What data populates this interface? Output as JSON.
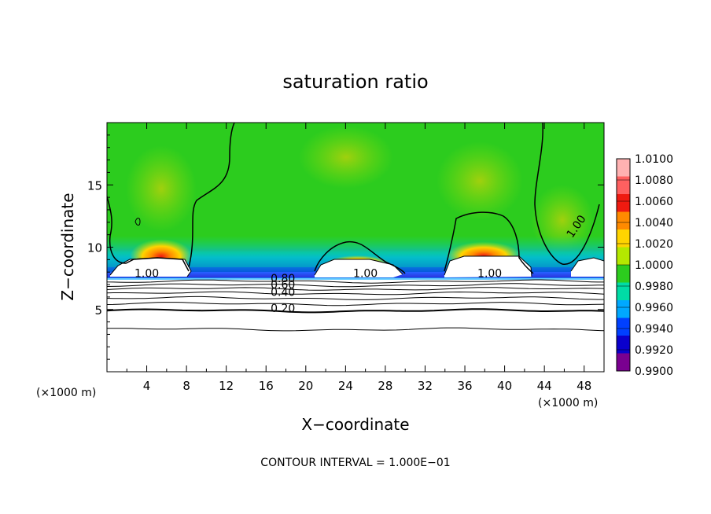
{
  "chart_data": {
    "type": "heatmap",
    "title": "saturation ratio",
    "xlabel": "X−coordinate",
    "ylabel": "Z−coordinate",
    "x_unit_left": "(×1000 m)",
    "x_unit_right": "(×1000 m)",
    "footer": "CONTOUR INTERVAL = 1.000E−01",
    "xlim": [
      0,
      50
    ],
    "ylim": [
      0,
      20
    ],
    "x_ticks": [
      4,
      8,
      12,
      16,
      20,
      24,
      28,
      32,
      36,
      40,
      44,
      48
    ],
    "y_ticks": [
      5,
      10,
      15
    ],
    "colorbar": {
      "min": 0.99,
      "max": 1.01,
      "labels": [
        "1.0100",
        "1.0080",
        "1.0060",
        "1.0040",
        "1.0020",
        "1.0000",
        "0.9980",
        "0.9960",
        "0.9940",
        "0.9920",
        "0.9900"
      ],
      "colors": [
        "#ffb2b2",
        "#ff6060",
        "#ef1a10",
        "#ff8a00",
        "#ffd400",
        "#b4e800",
        "#2ccc1e",
        "#00dca6",
        "#00a8ff",
        "#0040ff",
        "#0a00cc",
        "#7a0090"
      ]
    },
    "contour_labels": [
      {
        "text": "1.00",
        "x": 4.0,
        "y": 7.6
      },
      {
        "text": "1.00",
        "x": 26.0,
        "y": 7.6
      },
      {
        "text": "1.00",
        "x": 38.5,
        "y": 7.6
      },
      {
        "text": "1.00",
        "x": 47.5,
        "y": 11.5
      },
      {
        "text": "0.80",
        "x": 17.7,
        "y": 7.2
      },
      {
        "text": "0.60",
        "x": 17.7,
        "y": 6.7
      },
      {
        "text": "0.40",
        "x": 17.7,
        "y": 6.1
      },
      {
        "text": "0.20",
        "x": 17.7,
        "y": 4.8
      }
    ],
    "contour_levels_z": [
      7.25,
      6.95,
      6.65,
      6.3,
      5.9,
      5.45,
      4.9,
      3.4
    ]
  }
}
